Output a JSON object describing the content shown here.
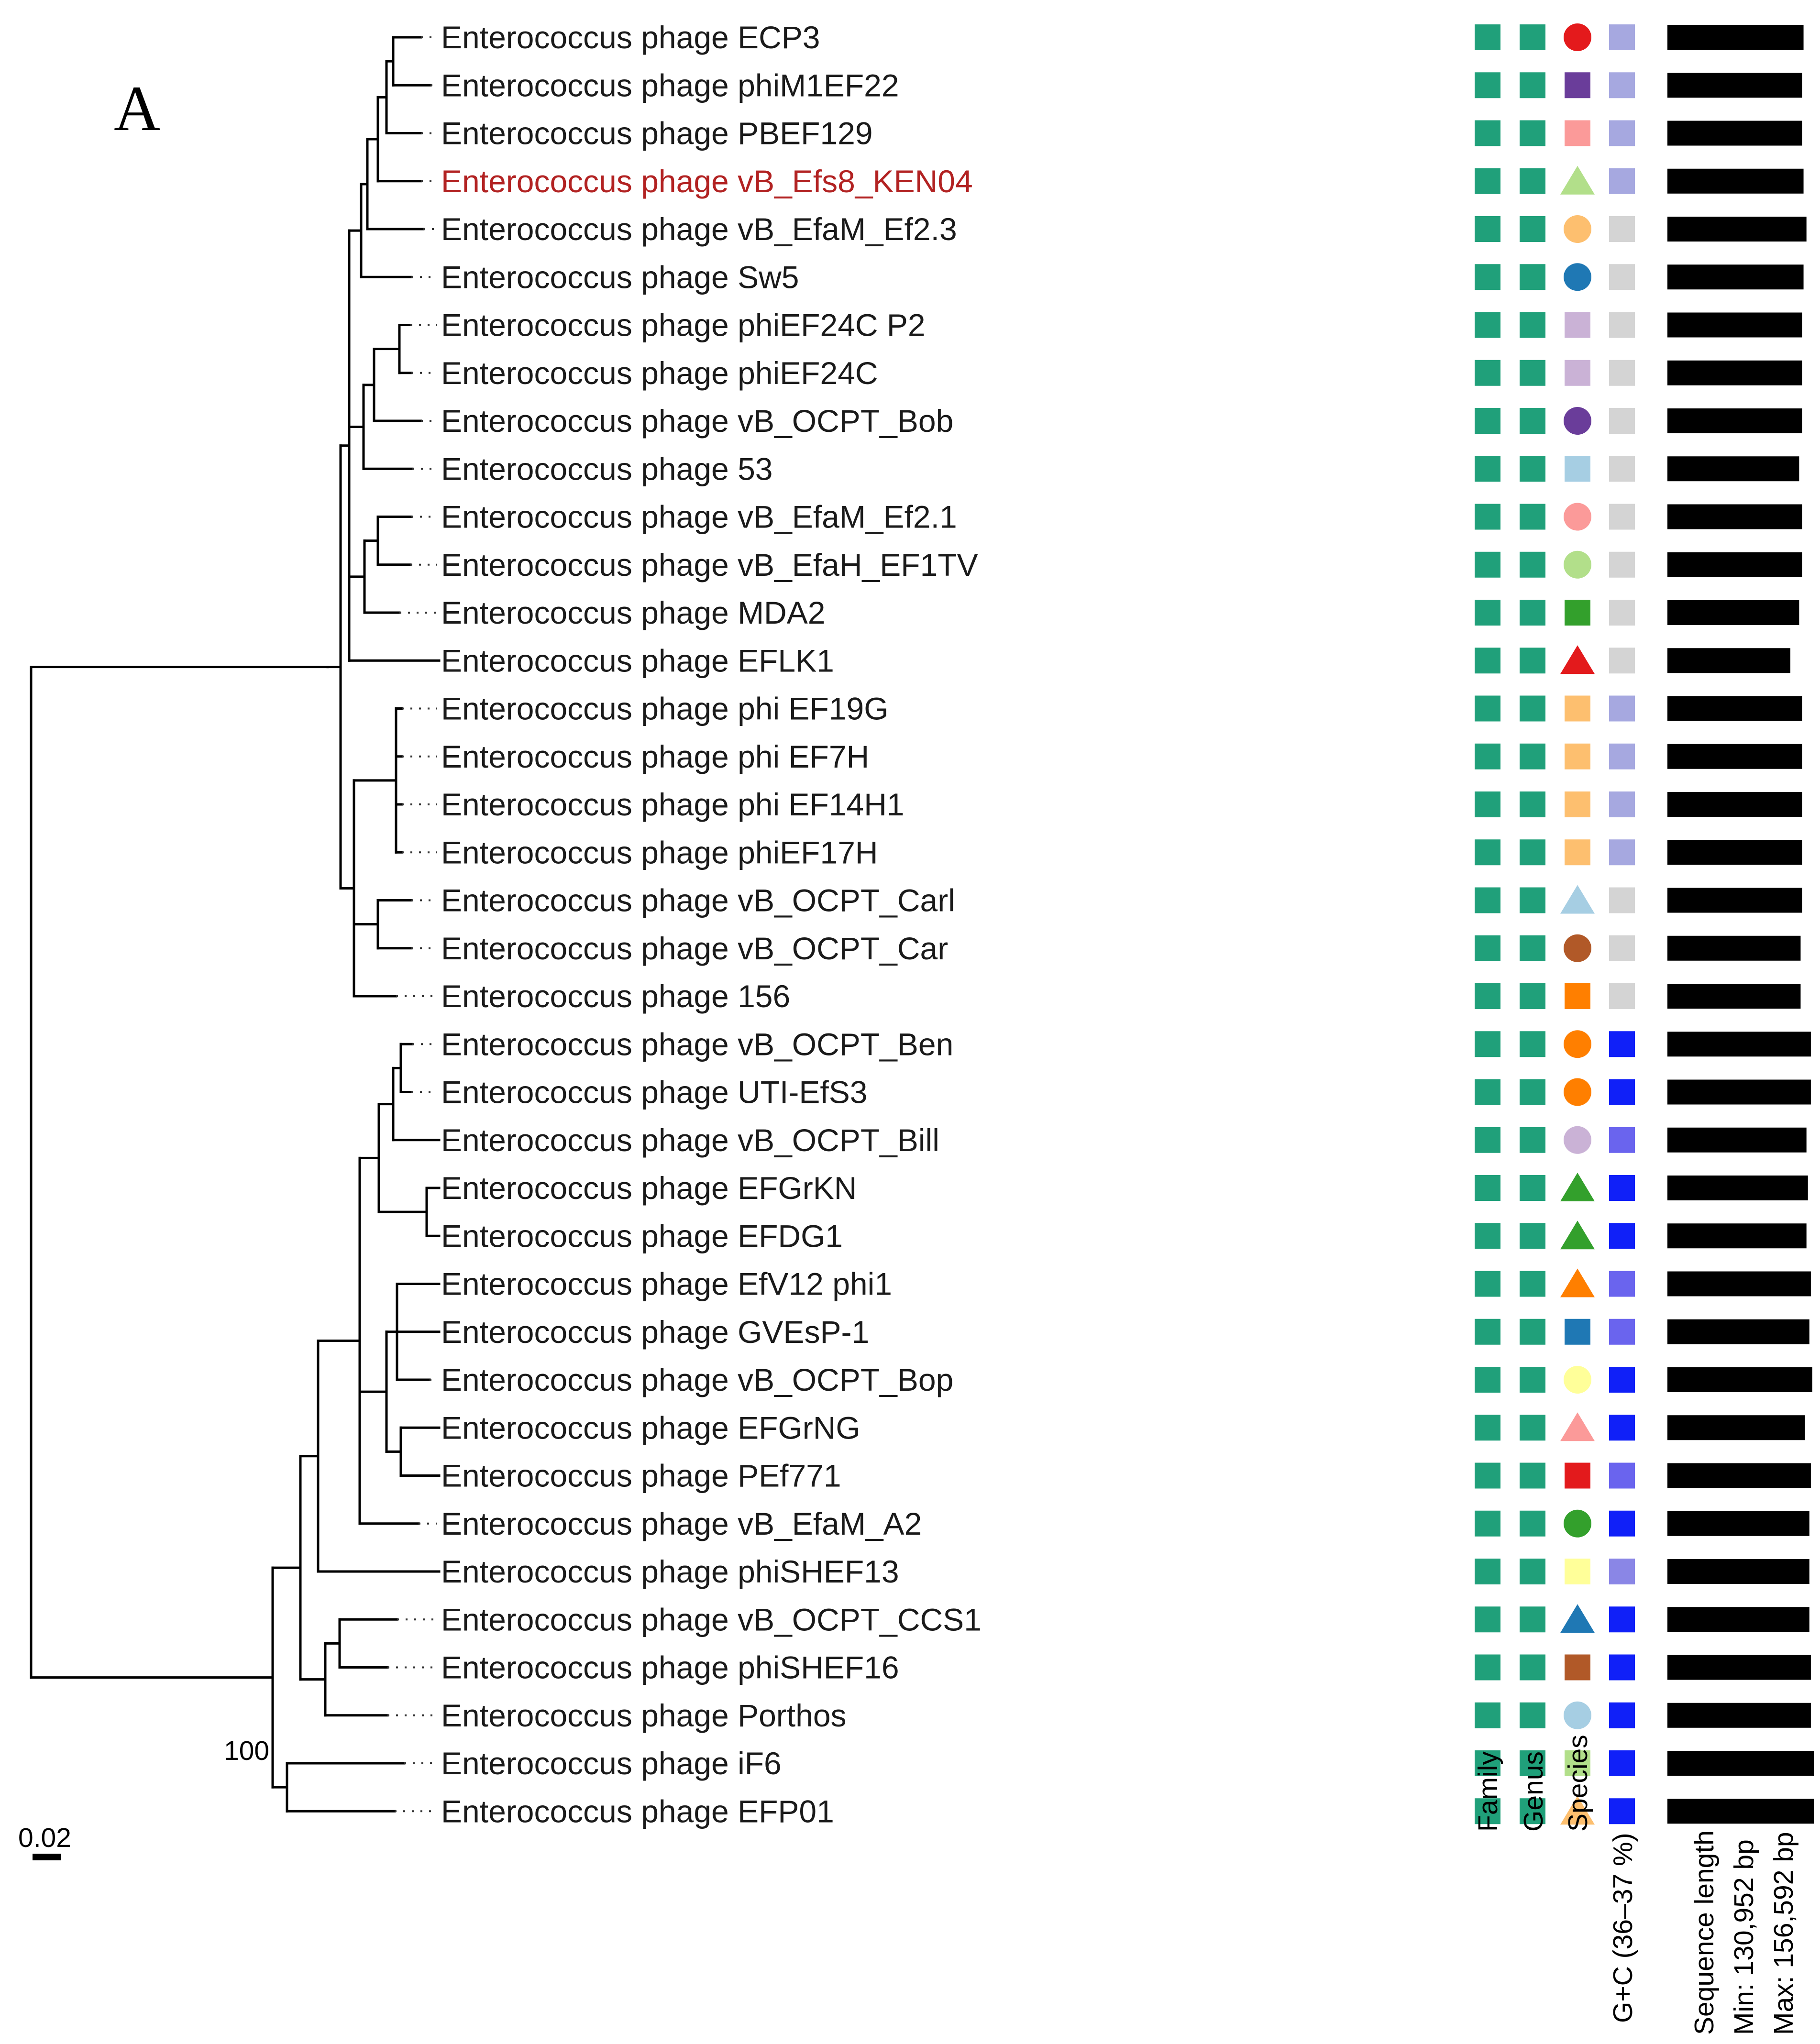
{
  "panel_label": "A",
  "scale_bar_label": "0.02",
  "bootstrap_label": "100",
  "colors": {
    "branch": "#000000",
    "label": "#1a1a1a",
    "highlight_label": "#b22222",
    "family_genus": "#20a07a",
    "gc_light": "#a6a8e0",
    "gc_grey": "#d4d4d4",
    "gc_mid": "#6a64ee",
    "gc_blue": "#1020f8",
    "length_bar": "#000000"
  },
  "column_headers": {
    "family": "Family",
    "genus": "Genus",
    "species": "Species",
    "gc": "G+C (36–37 %)",
    "length_title": "Sequence length",
    "length_min": "Min: 130,952 bp",
    "length_max": "Max: 156,592 bp"
  },
  "tips": [
    {
      "label": "Enterococcus phage ECP3",
      "species_shape": "circle",
      "species_color": "#e41a1c",
      "gc_color": "#a6a8e0",
      "length_fraction": 0.93
    },
    {
      "label": "Enterococcus phage phiM1EF22",
      "species_shape": "square",
      "species_color": "#6a3d9a",
      "gc_color": "#a6a8e0",
      "length_fraction": 0.92
    },
    {
      "label": "Enterococcus phage PBEF129",
      "species_shape": "square",
      "species_color": "#fb9a99",
      "gc_color": "#a6a8e0",
      "length_fraction": 0.92
    },
    {
      "label": "Enterococcus phage vB_Efs8_KEN04",
      "highlight": true,
      "species_shape": "triangle",
      "species_color": "#b2df8a",
      "gc_color": "#a6a8e0",
      "length_fraction": 0.93
    },
    {
      "label": "Enterococcus phage vB_EfaM_Ef2.3",
      "species_shape": "circle",
      "species_color": "#fdbf6f",
      "gc_color": "#d4d4d4",
      "length_fraction": 0.95
    },
    {
      "label": "Enterococcus phage Sw5",
      "species_shape": "circle",
      "species_color": "#1f78b4",
      "gc_color": "#d4d4d4",
      "length_fraction": 0.93
    },
    {
      "label": "Enterococcus phage phiEF24C P2",
      "species_shape": "square",
      "species_color": "#cab2d6",
      "gc_color": "#d4d4d4",
      "length_fraction": 0.92
    },
    {
      "label": "Enterococcus phage phiEF24C",
      "species_shape": "square",
      "species_color": "#cab2d6",
      "gc_color": "#d4d4d4",
      "length_fraction": 0.92
    },
    {
      "label": "Enterococcus phage vB_OCPT_Bob",
      "species_shape": "circle",
      "species_color": "#6a3d9a",
      "gc_color": "#d4d4d4",
      "length_fraction": 0.92
    },
    {
      "label": "Enterococcus phage 53",
      "species_shape": "square",
      "species_color": "#a6cee3",
      "gc_color": "#d4d4d4",
      "length_fraction": 0.9
    },
    {
      "label": "Enterococcus phage vB_EfaM_Ef2.1",
      "species_shape": "circle",
      "species_color": "#fb9a99",
      "gc_color": "#d4d4d4",
      "length_fraction": 0.92
    },
    {
      "label": "Enterococcus phage vB_EfaH_EF1TV",
      "species_shape": "circle",
      "species_color": "#b2df8a",
      "gc_color": "#d4d4d4",
      "length_fraction": 0.92
    },
    {
      "label": "Enterococcus phage MDA2",
      "species_shape": "square",
      "species_color": "#33a02c",
      "gc_color": "#d4d4d4",
      "length_fraction": 0.9
    },
    {
      "label": "Enterococcus phage EFLK1",
      "species_shape": "triangle",
      "species_color": "#e31a1c",
      "gc_color": "#d4d4d4",
      "length_fraction": 0.84
    },
    {
      "label": "Enterococcus phage phi EF19G",
      "species_shape": "square",
      "species_color": "#fdbf6f",
      "gc_color": "#a6a8e0",
      "length_fraction": 0.92
    },
    {
      "label": "Enterococcus phage phi EF7H",
      "species_shape": "square",
      "species_color": "#fdbf6f",
      "gc_color": "#a6a8e0",
      "length_fraction": 0.92
    },
    {
      "label": "Enterococcus phage phi EF14H1",
      "species_shape": "square",
      "species_color": "#fdbf6f",
      "gc_color": "#a6a8e0",
      "length_fraction": 0.92
    },
    {
      "label": "Enterococcus phage phiEF17H",
      "species_shape": "square",
      "species_color": "#fdbf6f",
      "gc_color": "#a6a8e0",
      "length_fraction": 0.92
    },
    {
      "label": "Enterococcus phage vB_OCPT_Carl",
      "species_shape": "triangle",
      "species_color": "#a6cee3",
      "gc_color": "#d4d4d4",
      "length_fraction": 0.92
    },
    {
      "label": "Enterococcus phage vB_OCPT_Car",
      "species_shape": "circle",
      "species_color": "#b15928",
      "gc_color": "#d4d4d4",
      "length_fraction": 0.91
    },
    {
      "label": "Enterococcus phage 156",
      "species_shape": "square",
      "species_color": "#ff7f00",
      "gc_color": "#d4d4d4",
      "length_fraction": 0.91
    },
    {
      "label": "Enterococcus phage vB_OCPT_Ben",
      "species_shape": "circle",
      "species_color": "#ff7f00",
      "gc_color": "#1020f8",
      "length_fraction": 0.98
    },
    {
      "label": "Enterococcus phage UTI-EfS3",
      "species_shape": "circle",
      "species_color": "#ff7f00",
      "gc_color": "#1020f8",
      "length_fraction": 0.98
    },
    {
      "label": "Enterococcus phage vB_OCPT_Bill",
      "species_shape": "circle",
      "species_color": "#cab2d6",
      "gc_color": "#6a64ee",
      "length_fraction": 0.95
    },
    {
      "label": "Enterococcus phage EFGrKN",
      "species_shape": "triangle",
      "species_color": "#33a02c",
      "gc_color": "#1020f8",
      "length_fraction": 0.96
    },
    {
      "label": "Enterococcus phage EFDG1",
      "species_shape": "triangle",
      "species_color": "#33a02c",
      "gc_color": "#1020f8",
      "length_fraction": 0.95
    },
    {
      "label": "Enterococcus phage EfV12 phi1",
      "species_shape": "triangle",
      "species_color": "#ff7f00",
      "gc_color": "#6a64ee",
      "length_fraction": 0.98
    },
    {
      "label": "Enterococcus phage GVEsP-1",
      "species_shape": "square",
      "species_color": "#1f78b4",
      "gc_color": "#6a64ee",
      "length_fraction": 0.97
    },
    {
      "label": "Enterococcus phage vB_OCPT_Bop",
      "species_shape": "circle",
      "species_color": "#ffff99",
      "gc_color": "#1020f8",
      "length_fraction": 0.99
    },
    {
      "label": "Enterococcus phage EFGrNG",
      "species_shape": "triangle",
      "species_color": "#fb9a99",
      "gc_color": "#1020f8",
      "length_fraction": 0.94
    },
    {
      "label": "Enterococcus phage PEf771",
      "species_shape": "square",
      "species_color": "#e31a1c",
      "gc_color": "#6a64ee",
      "length_fraction": 0.98
    },
    {
      "label": "Enterococcus phage vB_EfaM_A2",
      "species_shape": "circle",
      "species_color": "#33a02c",
      "gc_color": "#1020f8",
      "length_fraction": 0.97
    },
    {
      "label": "Enterococcus phage phiSHEF13",
      "species_shape": "square",
      "species_color": "#ffff99",
      "gc_color": "#8a86e6",
      "length_fraction": 0.97
    },
    {
      "label": "Enterococcus phage vB_OCPT_CCS1",
      "species_shape": "triangle",
      "species_color": "#1f78b4",
      "gc_color": "#1020f8",
      "length_fraction": 0.97
    },
    {
      "label": "Enterococcus phage phiSHEF16",
      "species_shape": "square",
      "species_color": "#b15928",
      "gc_color": "#1020f8",
      "length_fraction": 0.98
    },
    {
      "label": "Enterococcus phage Porthos",
      "species_shape": "circle",
      "species_color": "#a6cee3",
      "gc_color": "#1020f8",
      "length_fraction": 0.98
    },
    {
      "label": "Enterococcus phage iF6",
      "species_shape": "square",
      "species_color": "#b2df8a",
      "gc_color": "#1020f8",
      "length_fraction": 1.0
    },
    {
      "label": "Enterococcus phage EFP01",
      "species_shape": "triangle",
      "species_color": "#fdbf6f",
      "gc_color": "#1020f8",
      "length_fraction": 1.0
    }
  ]
}
